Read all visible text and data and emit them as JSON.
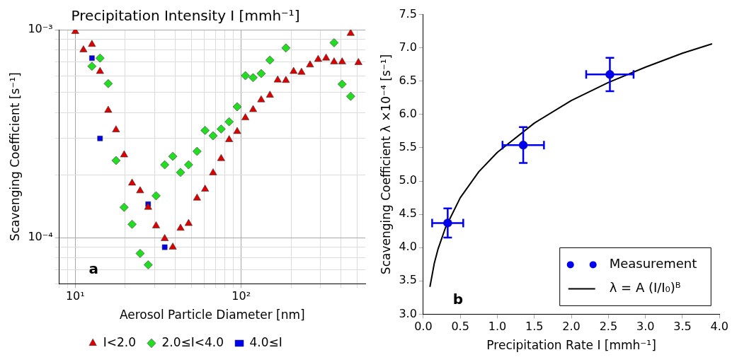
{
  "chart_data": [
    {
      "type": "scatter",
      "title": "Precipitation Intensity I [mmh⁻¹]",
      "xlabel": "Aerosol Particle Diameter [nm]",
      "ylabel": "Scavenging Coefficient [s⁻¹]",
      "annotations": [
        "a"
      ],
      "log": "xy",
      "grid": true,
      "legend": "bottom",
      "xlim": [
        8,
        560
      ],
      "ylim": [
        6e-05,
        0.001
      ],
      "xticks": [
        {
          "value": 8,
          "label": null
        },
        {
          "value": 9,
          "label": null
        },
        {
          "value": 10,
          "label": "10¹"
        },
        {
          "value": 20,
          "label": null
        },
        {
          "value": 30,
          "label": null
        },
        {
          "value": 40,
          "label": null
        },
        {
          "value": 50,
          "label": null
        },
        {
          "value": 60,
          "label": null
        },
        {
          "value": 70,
          "label": null
        },
        {
          "value": 80,
          "label": null
        },
        {
          "value": 90,
          "label": null
        },
        {
          "value": 100,
          "label": "10²"
        },
        {
          "value": 200,
          "label": null
        },
        {
          "value": 300,
          "label": null
        },
        {
          "value": 400,
          "label": null
        },
        {
          "value": 500,
          "label": null
        }
      ],
      "yticks": [
        {
          "value": 6e-05,
          "label": null
        },
        {
          "value": 7e-05,
          "label": null
        },
        {
          "value": 8e-05,
          "label": null
        },
        {
          "value": 9e-05,
          "label": null
        },
        {
          "value": 0.0001,
          "label": "10⁻⁴"
        },
        {
          "value": 0.0002,
          "label": null
        },
        {
          "value": 0.0003,
          "label": null
        },
        {
          "value": 0.0004,
          "label": null
        },
        {
          "value": 0.0005,
          "label": null
        },
        {
          "value": 0.0006,
          "label": null
        },
        {
          "value": 0.0007,
          "label": null
        },
        {
          "value": 0.0008,
          "label": null
        },
        {
          "value": 0.0009,
          "label": null
        },
        {
          "value": 0.001,
          "label": "10⁻³"
        }
      ],
      "series": [
        {
          "name": "I<2.0",
          "color": "#dd0000",
          "marker": "triangle",
          "x": [
            10,
            11.2,
            12.6,
            14.1,
            15.8,
            17.6,
            19.7,
            22,
            24.6,
            27.5,
            30.7,
            34.6,
            38.7,
            43.1,
            48.2,
            54.2,
            60.6,
            67.7,
            75.7,
            84.6,
            94.6,
            106,
            118,
            132,
            149,
            166,
            186,
            207,
            231,
            260,
            291,
            325,
            363,
            406,
            457,
            509
          ],
          "values": [
            0.00098,
            0.0008,
            0.00085,
            0.00063,
            0.00041,
            0.00033,
            0.00025,
            0.000183,
            0.000168,
            0.00014,
            0.000114,
            9.9e-05,
            9e-05,
            0.000111,
            0.000117,
            0.000155,
            0.000171,
            0.000205,
            0.00024,
            0.000296,
            0.000324,
            0.000377,
            0.000413,
            0.00046,
            0.000484,
            0.000573,
            0.00057,
            0.00063,
            0.000624,
            0.000677,
            0.00072,
            0.00073,
            0.0007,
            0.0007,
            0.00096,
            0.000695
          ]
        },
        {
          "name": "2.0≤I<4.0",
          "color": "#22dd22",
          "marker": "diamond",
          "x": [
            12.6,
            14.1,
            15.8,
            17.6,
            19.7,
            22,
            24.6,
            27.5,
            30.7,
            34.6,
            38.7,
            43.1,
            48.2,
            54.2,
            60.6,
            67.7,
            75.7,
            84.6,
            94.6,
            106,
            118,
            132,
            149,
            186,
            363,
            406,
            457
          ],
          "values": [
            0.000667,
            0.00073,
            0.00055,
            0.000235,
            0.00014,
            0.000116,
            8.4e-05,
            7.4e-05,
            0.000159,
            0.000224,
            0.000246,
            0.000206,
            0.000224,
            0.00026,
            0.000328,
            0.000309,
            0.000333,
            0.000361,
            0.000426,
            0.000601,
            0.000588,
            0.000615,
            0.000714,
            0.000817,
            0.000866,
            0.000547,
            0.000478
          ]
        },
        {
          "name": "4.0≤I",
          "color": "#0000ee",
          "marker": "square",
          "x": [
            12.6,
            14.1,
            27.5,
            34.6
          ],
          "values": [
            0.00073,
            0.0003,
            0.000145,
            9e-05
          ]
        }
      ]
    },
    {
      "type": "scatter",
      "xlabel": "Precipitation Rate I [mmh⁻¹]",
      "ylabel": "Scavenging Coefficient λ ×10⁻⁴ [s⁻¹]",
      "annotations": [
        "b"
      ],
      "legend": "bottom right",
      "xlim": [
        0,
        4
      ],
      "ylim": [
        3,
        7.5
      ],
      "xticks": [
        {
          "value": 0,
          "label": "0.0"
        },
        {
          "value": 0.5,
          "label": "0.5"
        },
        {
          "value": 1,
          "label": "1.0"
        },
        {
          "value": 1.5,
          "label": "1.5"
        },
        {
          "value": 2,
          "label": "2.0"
        },
        {
          "value": 2.5,
          "label": "2.5"
        },
        {
          "value": 3,
          "label": "3.0"
        },
        {
          "value": 3.5,
          "label": "3.5"
        },
        {
          "value": 4,
          "label": "4.0"
        }
      ],
      "yticks": [
        {
          "value": 3,
          "label": "3.0"
        },
        {
          "value": 3.5,
          "label": "3.5"
        },
        {
          "value": 4,
          "label": "4.0"
        },
        {
          "value": 4.5,
          "label": "4.5"
        },
        {
          "value": 5,
          "label": "5.0"
        },
        {
          "value": 5.5,
          "label": "5.5"
        },
        {
          "value": 6,
          "label": "6.0"
        },
        {
          "value": 6.5,
          "label": "6.5"
        },
        {
          "value": 7,
          "label": "7.0"
        },
        {
          "value": 7.5,
          "label": "7.5"
        }
      ],
      "series": [
        {
          "name": "Measurement",
          "color": "#0000ee",
          "marker": "circle",
          "x": [
            0.33,
            1.35,
            2.52
          ],
          "values": [
            4.37,
            5.54,
            6.6
          ],
          "errors": [
            0.22,
            0.27,
            0.25
          ],
          "xerrors": [
            0.21,
            0.28,
            0.32
          ]
        },
        {
          "name": "λ = A (I/I₀)ᴮ",
          "type": "line",
          "color": "#000000",
          "marker": "none",
          "x": [
            0.09,
            0.15,
            0.2,
            0.3,
            0.5,
            0.75,
            1,
            1.5,
            2,
            2.5,
            3,
            3.5,
            3.9
          ],
          "values": [
            3.41,
            3.77,
            3.98,
            4.3,
            4.75,
            5.14,
            5.43,
            5.87,
            6.21,
            6.48,
            6.71,
            6.92,
            7.06
          ]
        }
      ]
    }
  ]
}
